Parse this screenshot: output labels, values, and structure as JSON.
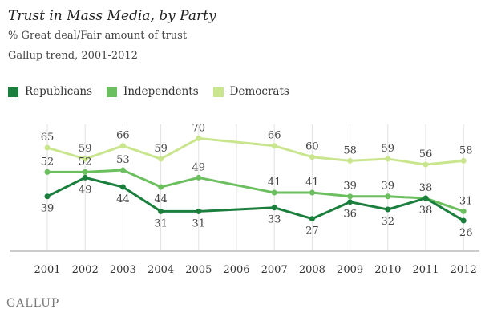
{
  "chart_data": {
    "type": "line",
    "title": "Trust in Mass Media, by Party",
    "subtitle": [
      "% Great deal/Fair amount of trust",
      "Gallup trend, 2001-2012"
    ],
    "categories": [
      "2001",
      "2002",
      "2003",
      "2004",
      "2005",
      "2006",
      "2007",
      "2008",
      "2009",
      "2010",
      "2011",
      "2012"
    ],
    "ylim": [
      10,
      75
    ],
    "grid": "vertical",
    "legend": "top-left",
    "series": [
      {
        "name": "Republicans",
        "color": "#1a7f3c",
        "values": [
          39,
          49,
          44,
          31,
          31,
          null,
          33,
          27,
          36,
          32,
          38,
          26
        ]
      },
      {
        "name": "Independents",
        "color": "#6cbf5f",
        "values": [
          52,
          52,
          53,
          44,
          49,
          null,
          41,
          41,
          39,
          39,
          38,
          31
        ]
      },
      {
        "name": "Democrats",
        "color": "#c9e68f",
        "values": [
          65,
          59,
          66,
          59,
          70,
          null,
          66,
          60,
          58,
          59,
          56,
          58
        ]
      }
    ]
  },
  "logo": "GALLUP"
}
